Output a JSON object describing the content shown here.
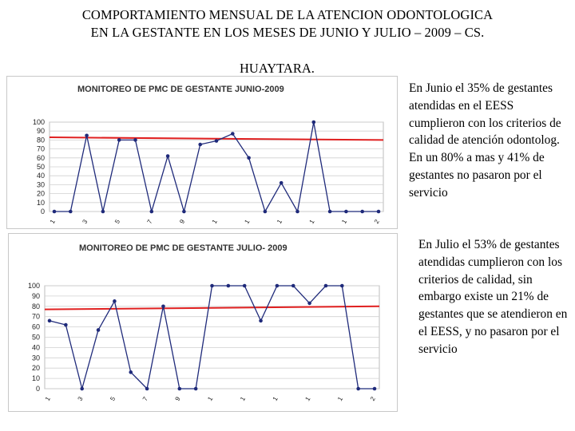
{
  "header": {
    "title_line1": "COMPORTAMIENTO MENSUAL DE LA ATENCION ODONTOLOGICA",
    "title_line2": "EN LA GESTANTE EN LOS MESES DE JUNIO Y  JULIO – 2009 – CS.",
    "subtitle": "HUAYTARA."
  },
  "notes": {
    "june": "En Junio el  35% de gestantes atendidas en el EESS cumplieron con los criterios de calidad de atención odontolog. En un 80% a mas  y 41% de gestantes no pasaron por el servicio",
    "july": "En Julio el 53% de gestantes atendidas cumplieron con los criterios de calidad, sin embargo existe un 21% de gestantes que se atendieron en el EESS, y no pasaron por el servicio"
  },
  "colors": {
    "series": "#1f2a7a",
    "reference": "#e02020",
    "grid": "#d0d0d0"
  },
  "chart_data": [
    {
      "type": "line",
      "title": "MONITOREO DE PMC DE GESTANTE  JUNIO-2009",
      "ylim": [
        0,
        100
      ],
      "yticks": [
        0,
        10,
        20,
        30,
        40,
        50,
        60,
        70,
        80,
        90,
        100
      ],
      "xtick_labels": [
        "1",
        "",
        "3",
        "",
        "5",
        "",
        "7",
        "",
        "9",
        "",
        "1",
        "",
        "1",
        "",
        "1",
        "",
        "1",
        "",
        "1",
        "",
        "2"
      ],
      "x": [
        1,
        2,
        3,
        4,
        5,
        6,
        7,
        8,
        9,
        10,
        11,
        12,
        13,
        14,
        15,
        16,
        17,
        18,
        19,
        20,
        21
      ],
      "series": [
        {
          "values": [
            0,
            0,
            85,
            0,
            80,
            80,
            0,
            62,
            0,
            75,
            79,
            87,
            60,
            0,
            32,
            0,
            100,
            0,
            0,
            0,
            0
          ]
        }
      ],
      "reference_line": {
        "start": 83,
        "end": 80
      },
      "grid": true
    },
    {
      "type": "line",
      "title": "MONITOREO DE PMC DE GESTANTE JULIO- 2009",
      "ylim": [
        0,
        100
      ],
      "yticks": [
        0,
        10,
        20,
        30,
        40,
        50,
        60,
        70,
        80,
        90,
        100
      ],
      "xtick_labels": [
        "1",
        "",
        "3",
        "",
        "5",
        "",
        "7",
        "",
        "9",
        "",
        "1",
        "",
        "1",
        "",
        "1",
        "",
        "1",
        "",
        "1",
        "",
        "2"
      ],
      "x": [
        1,
        2,
        3,
        4,
        5,
        6,
        7,
        8,
        9,
        10,
        11,
        12,
        13,
        14,
        15,
        16,
        17,
        18,
        19,
        20,
        21
      ],
      "series": [
        {
          "values": [
            66,
            62,
            0,
            57,
            85,
            16,
            0,
            80,
            0,
            0,
            100,
            100,
            100,
            66,
            100,
            100,
            83,
            100,
            100,
            0,
            0
          ]
        }
      ],
      "reference_line": {
        "start": 77,
        "end": 80
      },
      "grid": true
    }
  ]
}
